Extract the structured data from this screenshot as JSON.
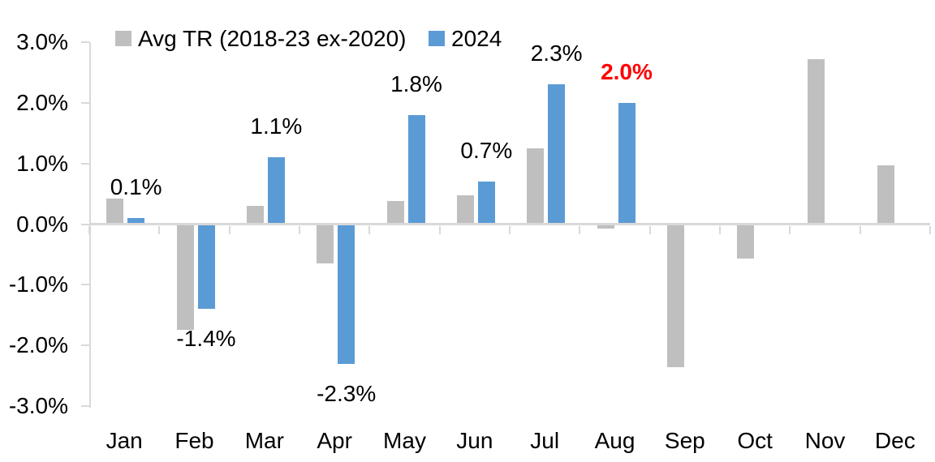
{
  "chart_data": {
    "type": "bar",
    "title": "",
    "xlabel": "",
    "ylabel": "",
    "categories": [
      "Jan",
      "Feb",
      "Mar",
      "Apr",
      "May",
      "Jun",
      "Jul",
      "Aug",
      "Sep",
      "Oct",
      "Nov",
      "Dec"
    ],
    "series": [
      {
        "name": "Avg TR (2018-23 ex-2020)",
        "color": "#BFBFBF",
        "values": [
          0.42,
          -1.75,
          0.3,
          -0.65,
          0.38,
          0.47,
          1.25,
          -0.07,
          -2.36,
          -0.57,
          2.72,
          0.97
        ]
      },
      {
        "name": "2024",
        "color": "#5B9BD5",
        "values": [
          0.1,
          -1.4,
          1.1,
          -2.3,
          1.8,
          0.7,
          2.3,
          2.0,
          null,
          null,
          null,
          null
        ],
        "data_labels": [
          {
            "text": "0.1%",
            "color": "#000000",
            "bold": false
          },
          {
            "text": "-1.4%",
            "color": "#000000",
            "bold": false
          },
          {
            "text": "1.1%",
            "color": "#000000",
            "bold": false
          },
          {
            "text": "-2.3%",
            "color": "#000000",
            "bold": false
          },
          {
            "text": "1.8%",
            "color": "#000000",
            "bold": false
          },
          {
            "text": "0.7%",
            "color": "#000000",
            "bold": false
          },
          {
            "text": "2.3%",
            "color": "#000000",
            "bold": false
          },
          {
            "text": "2.0%",
            "color": "#FF0000",
            "bold": true
          },
          null,
          null,
          null,
          null
        ]
      }
    ],
    "ylim": [
      -3,
      3
    ],
    "ytick_labels": [
      "3.0%",
      "2.0%",
      "1.0%",
      "0.0%",
      "-1.0%",
      "-2.0%",
      "-3.0%"
    ],
    "ytick_values": [
      3,
      2,
      1,
      0,
      -1,
      -2,
      -3
    ],
    "grid": false,
    "legend_position": "top",
    "axis_color": "#D9D9D9",
    "text_color": "#000000",
    "background_color": "#FFFFFF"
  }
}
